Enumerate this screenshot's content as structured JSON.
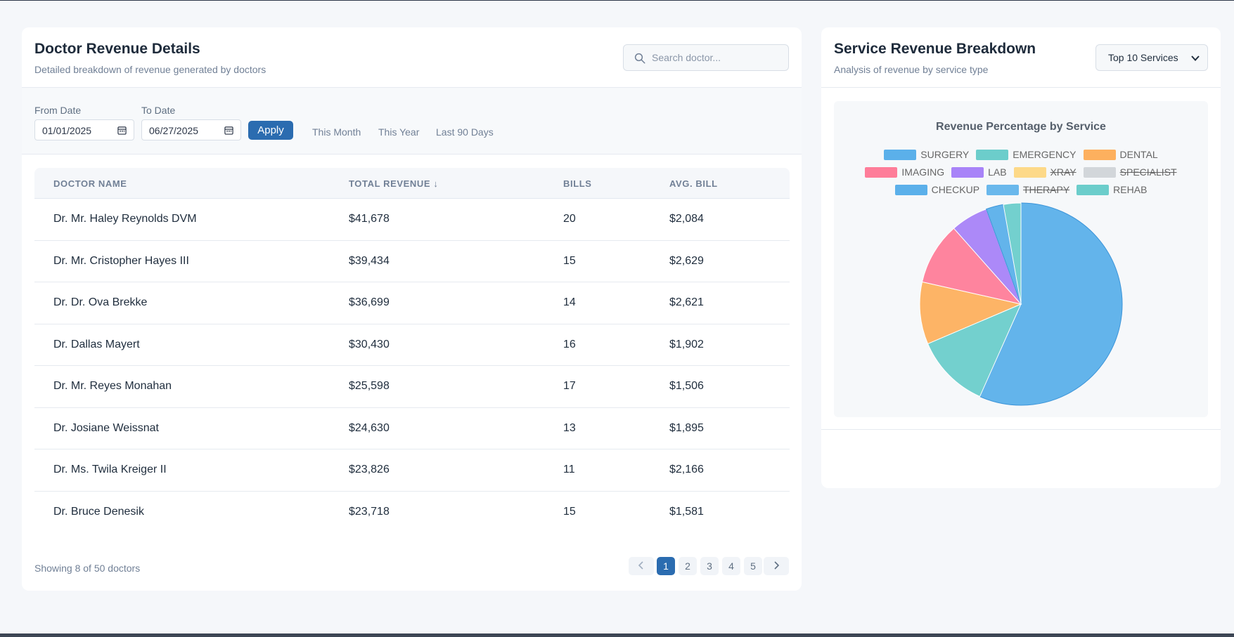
{
  "left_card": {
    "title": "Doctor Revenue Details",
    "subtitle": "Detailed breakdown of revenue generated by doctors",
    "search_placeholder": "Search doctor..."
  },
  "filters": {
    "from_label": "From Date",
    "from_value": "01/01/2025",
    "to_label": "To Date",
    "to_value": "06/27/2025",
    "apply_label": "Apply",
    "quick": [
      "This Month",
      "This Year",
      "Last 90 Days"
    ]
  },
  "table": {
    "headers": [
      "DOCTOR NAME",
      "TOTAL REVENUE ↓",
      "BILLS",
      "AVG. BILL"
    ],
    "rows": [
      [
        "Dr. Mr. Haley Reynolds DVM",
        "$41,678",
        "20",
        "$2,084"
      ],
      [
        "Dr. Mr. Cristopher Hayes III",
        "$39,434",
        "15",
        "$2,629"
      ],
      [
        "Dr. Dr. Ova Brekke",
        "$36,699",
        "14",
        "$2,621"
      ],
      [
        "Dr. Dallas Mayert",
        "$30,430",
        "16",
        "$1,902"
      ],
      [
        "Dr. Mr. Reyes Monahan",
        "$25,598",
        "17",
        "$1,506"
      ],
      [
        "Dr. Josiane Weissnat",
        "$24,630",
        "13",
        "$1,895"
      ],
      [
        "Dr. Ms. Twila Kreiger II",
        "$23,826",
        "11",
        "$2,166"
      ],
      [
        "Dr. Bruce Denesik",
        "$23,718",
        "15",
        "$1,581"
      ]
    ]
  },
  "footer": {
    "showing": "Showing 8 of 50 doctors",
    "pages": [
      "1",
      "2",
      "3",
      "4",
      "5"
    ],
    "active_page": "1"
  },
  "right_card": {
    "title": "Service Revenue Breakdown",
    "subtitle": "Analysis of revenue by service type",
    "select_value": "Top 10 Services"
  },
  "chart_data": {
    "type": "pie",
    "title": "Revenue Percentage by Service",
    "legend_position": "top",
    "series": [
      {
        "name": "SURGERY",
        "value": 57,
        "color": "#5bb0ea",
        "visible": true
      },
      {
        "name": "EMERGENCY",
        "value": 12,
        "color": "#6ccdcb",
        "visible": true
      },
      {
        "name": "DENTAL",
        "value": 10,
        "color": "#fdb05e",
        "visible": true
      },
      {
        "name": "IMAGING",
        "value": 10,
        "color": "#fe7d99",
        "visible": true
      },
      {
        "name": "LAB",
        "value": 6,
        "color": "#a883f8",
        "visible": true
      },
      {
        "name": "XRAY",
        "value": 0,
        "color": "#fed57b",
        "visible": false
      },
      {
        "name": "SPECIALIST",
        "value": 0,
        "color": "#ced1d6",
        "visible": false
      },
      {
        "name": "CHECKUP",
        "value": 2.8,
        "color": "#5bb0ea",
        "visible": true
      },
      {
        "name": "THERAPY",
        "value": 0,
        "color": "#5bb0ea",
        "visible": false
      },
      {
        "name": "REHAB",
        "value": 2.8,
        "color": "#6ccdcb",
        "visible": true
      }
    ]
  }
}
